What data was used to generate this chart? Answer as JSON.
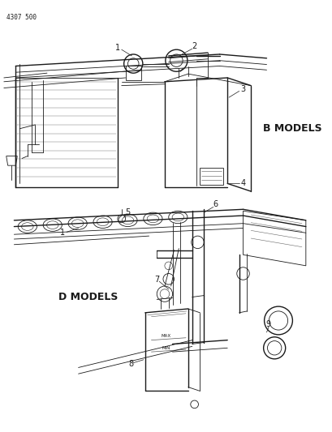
{
  "page_code": "4307 500",
  "bg": "#ffffff",
  "lc": "#1a1a1a",
  "b_label": "B MODELS",
  "d_label": "D MODELS",
  "figw": 4.1,
  "figh": 5.33,
  "dpi": 100
}
